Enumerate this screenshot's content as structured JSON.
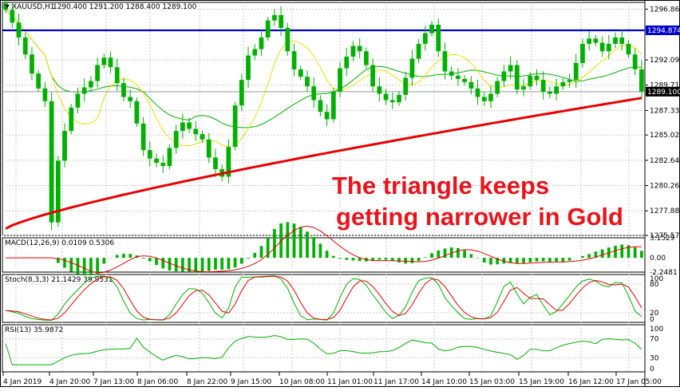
{
  "chart_data": {
    "type": "candlestick",
    "symbol_label": "XAUUSD,H1",
    "ohlc_label": "1290.400 1291.200 1288.400 1289.100",
    "x_tick_labels": [
      "4 Jan 2019",
      "4 Jan 20:00",
      "7 Jan 13:00",
      "8 Jan 06:00",
      "8 Jan 22:00",
      "9 Jan 15:00",
      "10 Jan 08:00",
      "11 Jan 01:00",
      "11 Jan 17:00",
      "14 Jan 10:00",
      "15 Jan 03:00",
      "15 Jan 19:00",
      "16 Jan 12:00",
      "17 Jan 05:00"
    ],
    "price_axis": {
      "ticks": [
        "1296.860",
        "1294.874",
        "1292.090",
        "1289.710",
        "1289.100",
        "1287.330",
        "1285.020",
        "1282.640",
        "1280.260",
        "1277.880",
        "1275.570"
      ],
      "ylim": [
        1275.57,
        1297.5
      ]
    },
    "horizontal_line": {
      "label": "1294.874",
      "value": 1294.874,
      "color": "#0000cc"
    },
    "current_price": {
      "label": "1289.100",
      "value": 1289.1
    },
    "ma_colors": {
      "fast": "#e8e000",
      "slow": "#00b000",
      "trend": "#e80000"
    },
    "candle_closes": [
      1296.8,
      1295.6,
      1294.2,
      1292.6,
      1290.8,
      1289.4,
      1288.2,
      1276.8,
      1282.6,
      1285.4,
      1287.6,
      1288.9,
      1289.5,
      1290.1,
      1291.6,
      1292.3,
      1291.4,
      1289.9,
      1288.6,
      1288.2,
      1286.1,
      1283.6,
      1282.8,
      1282.4,
      1282.1,
      1283.8,
      1285.4,
      1286.2,
      1285.6,
      1285.1,
      1284.6,
      1282.9,
      1281.8,
      1281.1,
      1283.9,
      1287.8,
      1290.2,
      1292.5,
      1293.1,
      1294.2,
      1295.8,
      1296.3,
      1295.1,
      1292.9,
      1291.2,
      1290.5,
      1289.6,
      1288.3,
      1287.2,
      1286.5,
      1289.1,
      1291.3,
      1292.4,
      1293.4,
      1292.9,
      1291.6,
      1289.6,
      1288.9,
      1288.3,
      1288.1,
      1288.8,
      1290.4,
      1292.2,
      1293.6,
      1294.6,
      1295.4,
      1292.9,
      1291.0,
      1290.6,
      1290.3,
      1290.0,
      1289.4,
      1288.6,
      1288.2,
      1288.9,
      1290.1,
      1291.0,
      1291.6,
      1289.3,
      1289.6,
      1290.6,
      1290.2,
      1289.1,
      1288.9,
      1289.6,
      1290.0,
      1290.2,
      1291.8,
      1293.6,
      1294.1,
      1293.7,
      1292.9,
      1293.6,
      1294.2,
      1293.6,
      1292.6,
      1291.2,
      1289.1
    ],
    "annotation_lines": [
      "The triangle keeps",
      "getting narrower in Gold"
    ],
    "indicators": [
      {
        "name": "MACD(12,26,9) 0.0109 0.5306",
        "axis_ticks": [
          "3.1529",
          "0.00",
          "-2.2481"
        ],
        "line_color": "#e80000",
        "hist_color": "#00b000"
      },
      {
        "name": "Stoch(8,3,3) 21.1429 39.9531",
        "axis_ticks": [
          "100",
          "80",
          "20",
          "0"
        ],
        "main_color": "#00b000",
        "signal_color": "#e80000"
      },
      {
        "name": "RSI(13) 35.9872",
        "axis_ticks": [
          "100",
          "70",
          "30",
          "0"
        ],
        "line_color": "#00b000"
      }
    ]
  }
}
